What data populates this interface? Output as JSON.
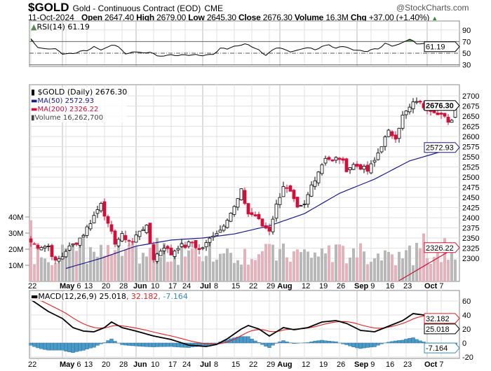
{
  "header": {
    "symbol": "$GOLD",
    "name": "Gold - Continuous Contract (EOD)",
    "exchange": "CME",
    "brand": "@StockCharts.com",
    "date": "11-Oct-2024",
    "open_l": "Open",
    "open": "2647.40",
    "high_l": "High",
    "high": "2679.00",
    "low_l": "Low",
    "low": "2645.30",
    "close_l": "Close",
    "close": "2676.30",
    "vol_l": "Volume",
    "vol": "16.3M",
    "chg_l": "Chg",
    "chg": "+37.00 (+1.40%)"
  },
  "legend": {
    "rsi": "RSI(14) 61.19",
    "price": "$GOLD (Daily) 2676.30",
    "ma50": "MA(50) 2572.93",
    "ma200": "MA(200) 2326.22",
    "volume": "Volume 16,262,700",
    "macd": "MACD(12,26,9) 25.018",
    "macd_signal": ", 32.182",
    "macd_hist": ", -7.164"
  },
  "tags": {
    "rsi": "61.19",
    "price": "2676.30",
    "ma50": "2572.93",
    "ma200": "2326.22",
    "macd_signal": "32.182",
    "macd": "25.018",
    "macd_hist": "-7.164"
  },
  "colors": {
    "up": "#ffffff",
    "down": "#d0103a",
    "ma50": "#1a1a8c",
    "ma200": "#d0103a",
    "rsi_fill": "#5a8a5a",
    "hist": "#4a9ac8",
    "vol": "#b8b8b8",
    "vol_down": "#e8b0b8"
  },
  "chart_data": {
    "type": "candlestick",
    "price_axis": [
      "2700",
      "2675",
      "2650",
      "2625",
      "2600",
      "2575",
      "2550",
      "2525",
      "2500",
      "2475",
      "2450",
      "2425",
      "2400",
      "2375",
      "2350",
      "2325",
      "2300"
    ],
    "volume_axis": [
      "40M",
      "30M",
      "20M",
      "10M"
    ],
    "rsi_axis": [
      "90",
      "70",
      "50",
      "30"
    ],
    "macd_axis": [
      "60",
      "40",
      "20",
      "0",
      "-20"
    ],
    "x_ticks": [
      {
        "day": 0,
        "label": "22"
      },
      {
        "day": 9,
        "label": "May",
        "bold": true
      },
      {
        "day": 10,
        "label": "6"
      },
      {
        "day": 16,
        "label": "13"
      },
      {
        "day": 21,
        "label": "20"
      },
      {
        "day": 26,
        "label": "28"
      },
      {
        "day": 30,
        "label": "Jun",
        "bold": true
      },
      {
        "day": 35,
        "label": "10"
      },
      {
        "day": 40,
        "label": "17"
      },
      {
        "day": 44,
        "label": "24"
      },
      {
        "day": 49,
        "label": "Jul",
        "bold": true
      },
      {
        "day": 53,
        "label": "8"
      },
      {
        "day": 58,
        "label": "15"
      },
      {
        "day": 63,
        "label": "22"
      },
      {
        "day": 68,
        "label": "29"
      },
      {
        "day": 71,
        "label": "Aug",
        "bold": true
      },
      {
        "day": 78,
        "label": "12"
      },
      {
        "day": 83,
        "label": "19"
      },
      {
        "day": 88,
        "label": "26"
      },
      {
        "day": 93,
        "label": "Sep",
        "bold": true
      },
      {
        "day": 97,
        "label": "9"
      },
      {
        "day": 102,
        "label": "16"
      },
      {
        "day": 107,
        "label": "23"
      },
      {
        "day": 113,
        "label": "Oct",
        "bold": true
      },
      {
        "day": 117,
        "label": "7"
      }
    ],
    "days": 122,
    "close_keypoints": [
      [
        0,
        2340
      ],
      [
        2,
        2330
      ],
      [
        5,
        2330
      ],
      [
        7,
        2290
      ],
      [
        9,
        2305
      ],
      [
        10,
        2320
      ],
      [
        13,
        2340
      ],
      [
        15,
        2360
      ],
      [
        17,
        2390
      ],
      [
        19,
        2420
      ],
      [
        20,
        2440
      ],
      [
        22,
        2380
      ],
      [
        24,
        2340
      ],
      [
        26,
        2355
      ],
      [
        29,
        2340
      ],
      [
        31,
        2370
      ],
      [
        33,
        2375
      ],
      [
        35,
        2300
      ],
      [
        36,
        2310
      ],
      [
        38,
        2330
      ],
      [
        40,
        2310
      ],
      [
        42,
        2330
      ],
      [
        44,
        2330
      ],
      [
        46,
        2340
      ],
      [
        48,
        2320
      ],
      [
        50,
        2335
      ],
      [
        52,
        2360
      ],
      [
        54,
        2370
      ],
      [
        56,
        2400
      ],
      [
        58,
        2425
      ],
      [
        60,
        2465
      ],
      [
        62,
        2410
      ],
      [
        64,
        2405
      ],
      [
        66,
        2380
      ],
      [
        68,
        2370
      ],
      [
        70,
        2430
      ],
      [
        72,
        2480
      ],
      [
        74,
        2460
      ],
      [
        76,
        2420
      ],
      [
        78,
        2430
      ],
      [
        80,
        2480
      ],
      [
        82,
        2515
      ],
      [
        84,
        2550
      ],
      [
        86,
        2540
      ],
      [
        88,
        2550
      ],
      [
        90,
        2520
      ],
      [
        92,
        2530
      ],
      [
        94,
        2525
      ],
      [
        96,
        2515
      ],
      [
        98,
        2540
      ],
      [
        100,
        2580
      ],
      [
        102,
        2610
      ],
      [
        104,
        2600
      ],
      [
        106,
        2650
      ],
      [
        108,
        2670
      ],
      [
        110,
        2690
      ],
      [
        111,
        2680
      ],
      [
        113,
        2670
      ],
      [
        115,
        2665
      ],
      [
        117,
        2650
      ],
      [
        119,
        2640
      ],
      [
        120,
        2640
      ],
      [
        121,
        2676.3
      ]
    ],
    "ma50_keypoints": [
      [
        10,
        2275
      ],
      [
        20,
        2300
      ],
      [
        30,
        2330
      ],
      [
        40,
        2345
      ],
      [
        49,
        2350
      ],
      [
        58,
        2360
      ],
      [
        68,
        2380
      ],
      [
        78,
        2410
      ],
      [
        88,
        2460
      ],
      [
        98,
        2495
      ],
      [
        108,
        2540
      ],
      [
        121,
        2572.93
      ]
    ],
    "ma200_keypoints": [
      [
        105,
        2245
      ],
      [
        121,
        2326.22
      ]
    ],
    "rsi": [
      75,
      60,
      58,
      57,
      58,
      48,
      50,
      49,
      55,
      54,
      62,
      55,
      60,
      65,
      60,
      48,
      52,
      52,
      50,
      52,
      45,
      45,
      48,
      45,
      48,
      46,
      48,
      45,
      48,
      48,
      60,
      57,
      62,
      63,
      67,
      60,
      56,
      45,
      55,
      60,
      57,
      52,
      55,
      58,
      60,
      55,
      62,
      65,
      58,
      62,
      60,
      55,
      55,
      52,
      58,
      57,
      68,
      62,
      65,
      70,
      75,
      65,
      67,
      60,
      58,
      52,
      55,
      61.19
    ],
    "macd_keypoints": [
      [
        0,
        62
      ],
      [
        5,
        45
      ],
      [
        9,
        35
      ],
      [
        12,
        22
      ],
      [
        15,
        17
      ],
      [
        18,
        16
      ],
      [
        21,
        22
      ],
      [
        23,
        30
      ],
      [
        26,
        22
      ],
      [
        30,
        17
      ],
      [
        35,
        10
      ],
      [
        40,
        5
      ],
      [
        45,
        -3
      ],
      [
        50,
        -5
      ],
      [
        53,
        -2
      ],
      [
        56,
        6
      ],
      [
        60,
        20
      ],
      [
        62,
        25
      ],
      [
        65,
        20
      ],
      [
        68,
        10
      ],
      [
        72,
        22
      ],
      [
        75,
        19
      ],
      [
        79,
        22
      ],
      [
        83,
        30
      ],
      [
        87,
        32
      ],
      [
        90,
        28
      ],
      [
        94,
        18
      ],
      [
        98,
        16
      ],
      [
        102,
        24
      ],
      [
        106,
        32
      ],
      [
        109,
        42
      ],
      [
        112,
        40
      ],
      [
        115,
        37
      ],
      [
        118,
        28
      ],
      [
        121,
        25.018
      ]
    ],
    "signal_start": 66,
    "macd_values": {
      "macd": 25.018,
      "signal": 32.182,
      "hist": -7.164
    },
    "rsi_value": 61.19
  }
}
